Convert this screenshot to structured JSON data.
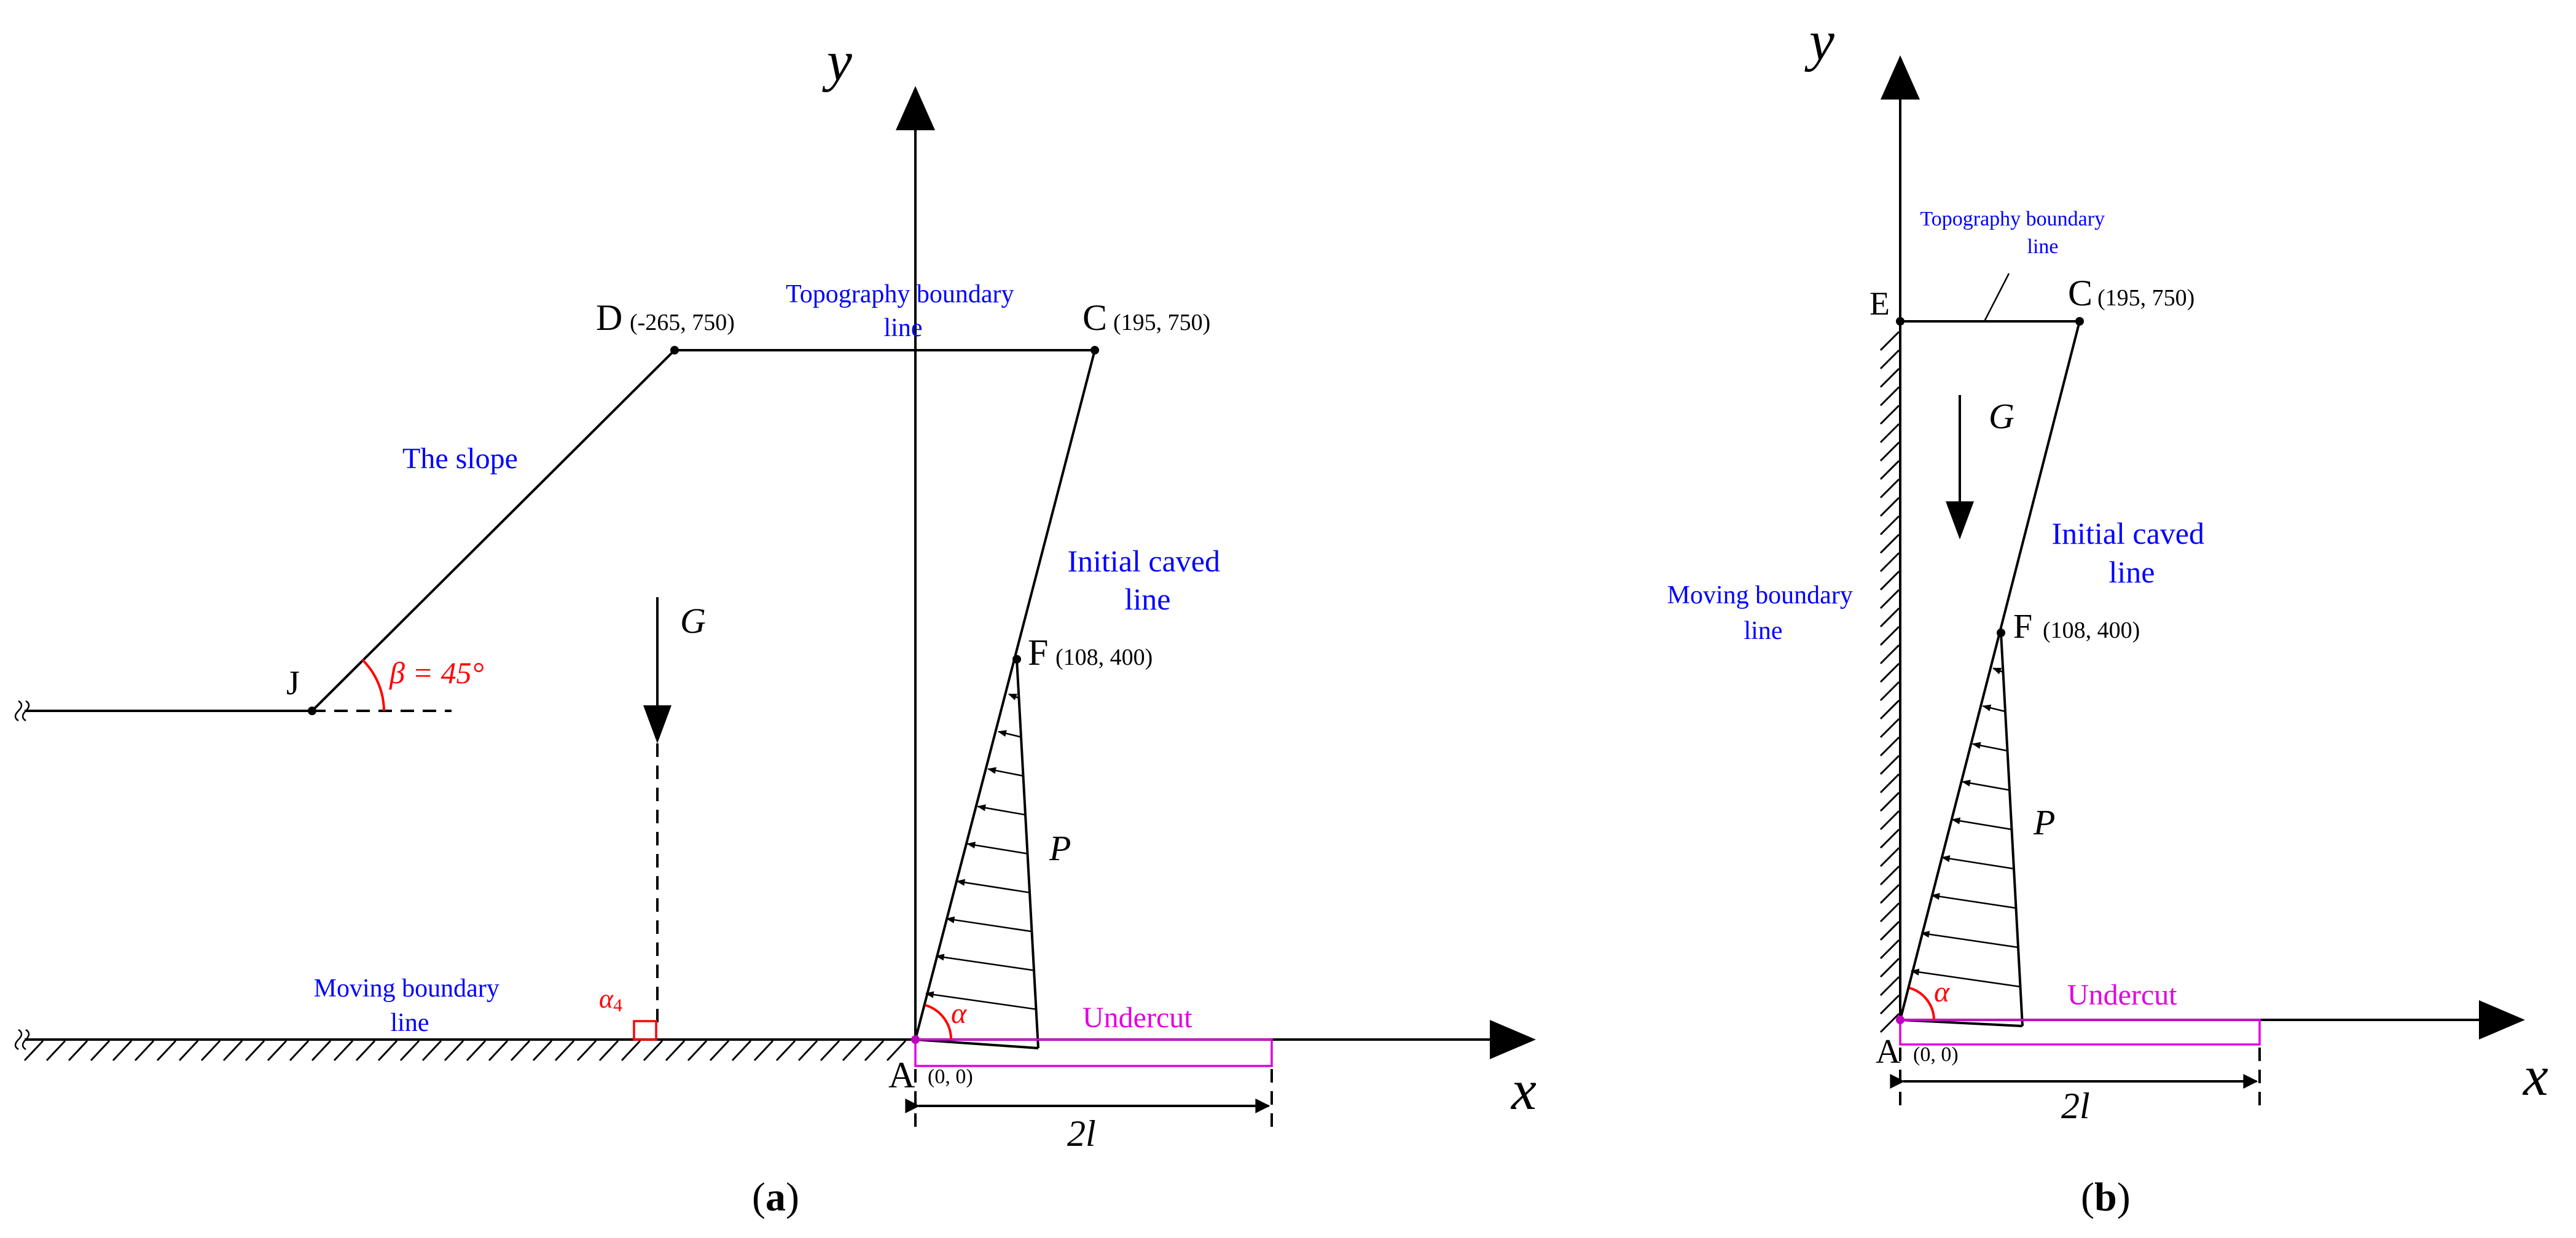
{
  "panel_a": {
    "caption_open": "(",
    "caption_letter": "a",
    "caption_close": ")",
    "axis_x": "x",
    "axis_y": "y",
    "point_d": "D",
    "coord_d": "(-265, 750)",
    "point_c": "C",
    "coord_c": "(195, 750)",
    "point_f": "F",
    "coord_f": "(108, 400)",
    "point_a": "A",
    "coord_a": "(0, 0)",
    "point_j": "J",
    "topography_label_line1": "Topography boundary",
    "topography_label_line2": "line",
    "slope_label": "The slope",
    "initial_caved_line1": "Initial caved",
    "initial_caved_line2": "line",
    "moving_boundary_line1": "Moving boundary",
    "moving_boundary_line2": "line",
    "undercut_label": "Undercut",
    "gravity_label": "G",
    "pressure_label": "P",
    "angle_alpha": "α",
    "angle_alpha4": "α",
    "angle_alpha4_sub": "4",
    "beta_label": "β = 45°",
    "width_label": "2l"
  },
  "panel_b": {
    "caption_open": "(",
    "caption_letter": "b",
    "caption_close": ")",
    "axis_x": "x",
    "axis_y": "y",
    "point_e": "E",
    "point_c": "C",
    "coord_c": "(195, 750)",
    "point_f": "F",
    "coord_f": "(108, 400)",
    "point_a": "A",
    "coord_a": "(0, 0)",
    "topography_label_line1": "Topography boundary",
    "topography_label_line2": "line",
    "initial_caved_line1": "Initial caved",
    "initial_caved_line2": "line",
    "moving_boundary_line1": "Moving boundary",
    "moving_boundary_line2": "line",
    "undercut_label": "Undercut",
    "gravity_label": "G",
    "pressure_label": "P",
    "angle_alpha": "α",
    "width_label": "2l"
  },
  "colors": {
    "annotation_blue": "#0000ff",
    "angle_red": "#ff0000",
    "undercut_magenta": "#e000e0",
    "line_black": "#000000"
  }
}
